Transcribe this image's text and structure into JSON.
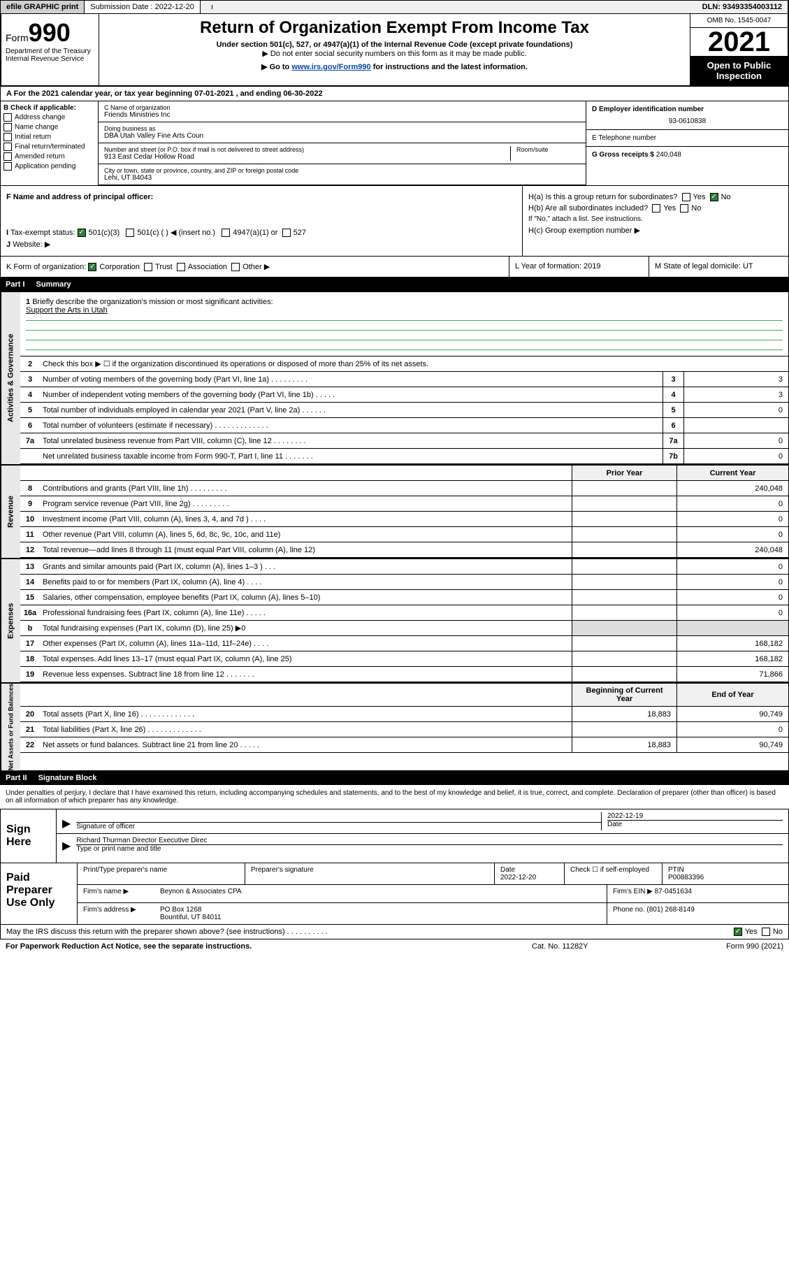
{
  "topbar": {
    "efile": "efile GRAPHIC print",
    "submission_label": "Submission Date : 2022-12-20",
    "dln": "DLN: 93493354003112"
  },
  "header": {
    "form_label": "Form",
    "form_num": "990",
    "title": "Return of Organization Exempt From Income Tax",
    "subtitle": "Under section 501(c), 527, or 4947(a)(1) of the Internal Revenue Code (except private foundations)",
    "note1": "▶ Do not enter social security numbers on this form as it may be made public.",
    "goto_pre": "▶ Go to ",
    "goto_link": "www.irs.gov/Form990",
    "goto_post": " for instructions and the latest information.",
    "omb": "OMB No. 1545-0047",
    "year": "2021",
    "open_pub": "Open to Public Inspection",
    "dept": "Department of the Treasury",
    "irs": "Internal Revenue Service"
  },
  "section_a": {
    "tax_year": "For the 2021 calendar year, or tax year beginning 07-01-2021   , and ending 06-30-2022",
    "b_label": "B Check if applicable:",
    "b_opts": [
      "Address change",
      "Name change",
      "Initial return",
      "Final return/terminated",
      "Amended return",
      "Application pending"
    ],
    "c_name_lbl": "C Name of organization",
    "c_name_val": "Friends Ministries Inc",
    "dba_lbl": "Doing business as",
    "dba_val": "DBA Utah Valley Fine Arts Coun",
    "street_lbl": "Number and street (or P.O. box if mail is not delivered to street address)",
    "street_val": "913 East Cedar Hollow Road",
    "room_lbl": "Room/suite",
    "city_lbl": "City or town, state or province, country, and ZIP or foreign postal code",
    "city_val": "Lehi, UT  84043",
    "d_lbl": "D Employer identification number",
    "d_val": "93-0610838",
    "e_lbl": "E Telephone number",
    "g_lbl": "G Gross receipts $",
    "g_val": "240,048"
  },
  "fghij": {
    "f_lbl": "F Name and address of principal officer:",
    "i_lbl": "Tax-exempt status:",
    "i_501c3": "501(c)(3)",
    "i_501c": "501(c) (  ) ◀ (insert no.)",
    "i_4947": "4947(a)(1) or",
    "i_527": "527",
    "j_lbl": "Website: ▶",
    "ha_lbl": "H(a)  Is this a group return for subordinates?",
    "hb_lbl": "H(b)  Are all subordinates included?",
    "hb_note": "If \"No,\" attach a list. See instructions.",
    "hc_lbl": "H(c)  Group exemption number ▶",
    "yes": "Yes",
    "no": "No"
  },
  "klm": {
    "k_lbl": "K Form of organization:",
    "k_corp": "Corporation",
    "k_trust": "Trust",
    "k_assoc": "Association",
    "k_other": "Other ▶",
    "l_lbl": "L Year of formation: 2019",
    "m_lbl": "M State of legal domicile: UT"
  },
  "part1": {
    "header_num": "Part I",
    "header_title": "Summary",
    "q1_lbl": "1",
    "q1_txt": "Briefly describe the organization's mission or most significant activities:",
    "q1_ans": "Support the Arts in Utah",
    "q2_lbl": "2",
    "q2_txt": "Check this box ▶ ☐  if the organization discontinued its operations or disposed of more than 25% of its net assets.",
    "vert_gov": "Activities & Governance",
    "vert_rev": "Revenue",
    "vert_exp": "Expenses",
    "vert_net": "Net Assets or Fund Balances",
    "lines_gov": [
      {
        "n": "3",
        "t": "Number of voting members of the governing body (Part VI, line 1a)   .    .    .    .    .    .    .    .    .",
        "b": "3",
        "v": "3"
      },
      {
        "n": "4",
        "t": "Number of independent voting members of the governing body (Part VI, line 1b)   .    .    .    .    .",
        "b": "4",
        "v": "3"
      },
      {
        "n": "5",
        "t": "Total number of individuals employed in calendar year 2021 (Part V, line 2a)   .    .    .    .    .    .",
        "b": "5",
        "v": "0"
      },
      {
        "n": "6",
        "t": "Total number of volunteers (estimate if necessary)   .    .    .    .    .    .    .    .    .    .    .    .    .",
        "b": "6",
        "v": ""
      },
      {
        "n": "7a",
        "t": "Total unrelated business revenue from Part VIII, column (C), line 12   .    .    .    .    .    .    .    .",
        "b": "7a",
        "v": "0"
      },
      {
        "n": "",
        "t": "Net unrelated business taxable income from Form 990-T, Part I, line 11   .    .    .    .    .    .    .",
        "b": "7b",
        "v": "0"
      }
    ],
    "col_prior": "Prior Year",
    "col_current": "Current Year",
    "lines_rev": [
      {
        "n": "8",
        "t": "Contributions and grants (Part VIII, line 1h)   .    .    .    .    .    .    .    .    .",
        "p": "",
        "c": "240,048"
      },
      {
        "n": "9",
        "t": "Program service revenue (Part VIII, line 2g)   .    .    .    .    .    .    .    .    .",
        "p": "",
        "c": "0"
      },
      {
        "n": "10",
        "t": "Investment income (Part VIII, column (A), lines 3, 4, and 7d )   .    .    .    .",
        "p": "",
        "c": "0"
      },
      {
        "n": "11",
        "t": "Other revenue (Part VIII, column (A), lines 5, 6d, 8c, 9c, 10c, and 11e)",
        "p": "",
        "c": "0"
      },
      {
        "n": "12",
        "t": "Total revenue—add lines 8 through 11 (must equal Part VIII, column (A), line 12)",
        "p": "",
        "c": "240,048"
      }
    ],
    "lines_exp": [
      {
        "n": "13",
        "t": "Grants and similar amounts paid (Part IX, column (A), lines 1–3 )   .    .    .",
        "p": "",
        "c": "0"
      },
      {
        "n": "14",
        "t": "Benefits paid to or for members (Part IX, column (A), line 4)   .    .    .    .",
        "p": "",
        "c": "0"
      },
      {
        "n": "15",
        "t": "Salaries, other compensation, employee benefits (Part IX, column (A), lines 5–10)",
        "p": "",
        "c": "0"
      },
      {
        "n": "16a",
        "t": "Professional fundraising fees (Part IX, column (A), line 11e)   .    .    .    .    .",
        "p": "",
        "c": "0"
      },
      {
        "n": "b",
        "t": "Total fundraising expenses (Part IX, column (D), line 25) ▶0",
        "p": "gray",
        "c": "gray"
      },
      {
        "n": "17",
        "t": "Other expenses (Part IX, column (A), lines 11a–11d, 11f–24e)   .    .    .    .",
        "p": "",
        "c": "168,182"
      },
      {
        "n": "18",
        "t": "Total expenses. Add lines 13–17 (must equal Part IX, column (A), line 25)",
        "p": "",
        "c": "168,182"
      },
      {
        "n": "19",
        "t": "Revenue less expenses. Subtract line 18 from line 12   .    .    .    .    .    .    .",
        "p": "",
        "c": "71,866"
      }
    ],
    "col_begin": "Beginning of Current Year",
    "col_end": "End of Year",
    "lines_net": [
      {
        "n": "20",
        "t": "Total assets (Part X, line 16)   .    .    .    .    .    .    .    .    .    .    .    .    .",
        "p": "18,883",
        "c": "90,749"
      },
      {
        "n": "21",
        "t": "Total liabilities (Part X, line 26)   .    .    .    .    .    .    .    .    .    .    .    .    .",
        "p": "",
        "c": "0"
      },
      {
        "n": "22",
        "t": "Net assets or fund balances. Subtract line 21 from line 20   .    .    .    .    .",
        "p": "18,883",
        "c": "90,749"
      }
    ]
  },
  "part2": {
    "header_num": "Part II",
    "header_title": "Signature Block",
    "penalty": "Under penalties of perjury, I declare that I have examined this return, including accompanying schedules and statements, and to the best of my knowledge and belief, it is true, correct, and complete. Declaration of preparer (other than officer) is based on all information of which preparer has any knowledge.",
    "sign_here": "Sign Here",
    "sig_officer_lbl": "Signature of officer",
    "sig_date": "2022-12-19",
    "sig_date_lbl": "Date",
    "sig_name": "Richard Thurman Director  Executive Direc",
    "sig_name_lbl": "Type or print name and title",
    "paid_label": "Paid Preparer Use Only",
    "prep_name_lbl": "Print/Type preparer's name",
    "prep_sig_lbl": "Preparer's signature",
    "prep_date_lbl": "Date",
    "prep_date": "2022-12-20",
    "prep_check_lbl": "Check ☐ if self-employed",
    "ptin_lbl": "PTIN",
    "ptin_val": "P00883396",
    "firm_name_lbl": "Firm's name      ▶",
    "firm_name": "Beynon & Associates CPA",
    "firm_ein_lbl": "Firm's EIN ▶",
    "firm_ein": "87-0451634",
    "firm_addr_lbl": "Firm's address ▶",
    "firm_addr1": "PO Box 1268",
    "firm_addr2": "Bountiful, UT  84011",
    "phone_lbl": "Phone no.",
    "phone_val": "(801) 268-8149",
    "discuss": "May the IRS discuss this return with the preparer shown above? (see instructions)   .    .    .    .    .    .    .    .    .    .",
    "yes": "Yes",
    "no": "No"
  },
  "footer": {
    "paperwork": "For Paperwork Reduction Act Notice, see the separate instructions.",
    "cat": "Cat. No. 11282Y",
    "form": "Form 990 (2021)"
  }
}
